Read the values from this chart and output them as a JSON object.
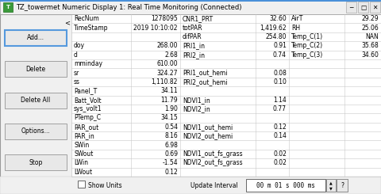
{
  "title": "TZ_towermet Numeric Display 1: Real Time Monitoring (Connected)",
  "bg_color": "#f0f0f0",
  "table_bg": "#ffffff",
  "button_color": "#e8e8e8",
  "button_border": "#a0a0a0",
  "add_button_border": "#5599dd",
  "buttons": [
    "Add...",
    "Delete",
    "Delete All",
    "Options...",
    "Stop"
  ],
  "table_data": [
    [
      "RecNum",
      "1278095",
      "CNR1_PRT",
      "32.60",
      "AirT",
      "29.29"
    ],
    [
      "TimeStamp",
      "2019 10:10:02",
      "totPAR",
      "1,419.62",
      "RH",
      "25.06"
    ],
    [
      "",
      "",
      "difPAR",
      "254.80",
      "Temp_C(1)",
      "NAN"
    ],
    [
      "doy",
      "268.00",
      "PRI1_in",
      "0.91",
      "Temp_C(2)",
      "35.68"
    ],
    [
      "d",
      "2.68",
      "PRI2_in",
      "0.74",
      "Temp_C(3)",
      "34.60"
    ],
    [
      "mminday",
      "610.00",
      "",
      "",
      "",
      ""
    ],
    [
      "sr",
      "324.27",
      "PRI1_out_hemi",
      "0.08",
      "",
      ""
    ],
    [
      "ss",
      "1,110.82",
      "PRI2_out_hemi",
      "0.10",
      "",
      ""
    ],
    [
      "Panel_T",
      "34.11",
      "",
      "",
      "",
      ""
    ],
    [
      "Batt_Volt",
      "11.79",
      "NDVI1_in",
      "1.14",
      "",
      ""
    ],
    [
      "sys_volt1",
      "1.90",
      "NDVI2_in",
      "0.77",
      "",
      ""
    ],
    [
      "PTemp_C",
      "34.15",
      "",
      "",
      "",
      ""
    ],
    [
      "PAR_out",
      "0.54",
      "NDVI1_out_hemi",
      "0.12",
      "",
      ""
    ],
    [
      "PAR_in",
      "8.16",
      "NDVI2_out_hemi",
      "0.14",
      "",
      ""
    ],
    [
      "SWin",
      "6.98",
      "",
      "",
      "",
      ""
    ],
    [
      "SWout",
      "0.69",
      "NDVI1_out_fs_grass",
      "0.02",
      "",
      ""
    ],
    [
      "LWin",
      "-1.54",
      "NDVI2_out_fs_grass",
      "0.02",
      "",
      ""
    ],
    [
      "LWout",
      "0.12",
      "",
      "",
      "",
      ""
    ]
  ],
  "col_aligns": [
    "left",
    "right",
    "left",
    "right",
    "left",
    "right"
  ],
  "bottom_text_left": "Show Units",
  "bottom_text_mid": "Update Interval",
  "bottom_text_right": "00 m 01 s 000 ms",
  "title_bar_bg": "#f0f0f0",
  "title_text_color": "#000000",
  "grid_color": "#c8c8c8",
  "font_size": 5.5,
  "title_font_size": 6.0
}
